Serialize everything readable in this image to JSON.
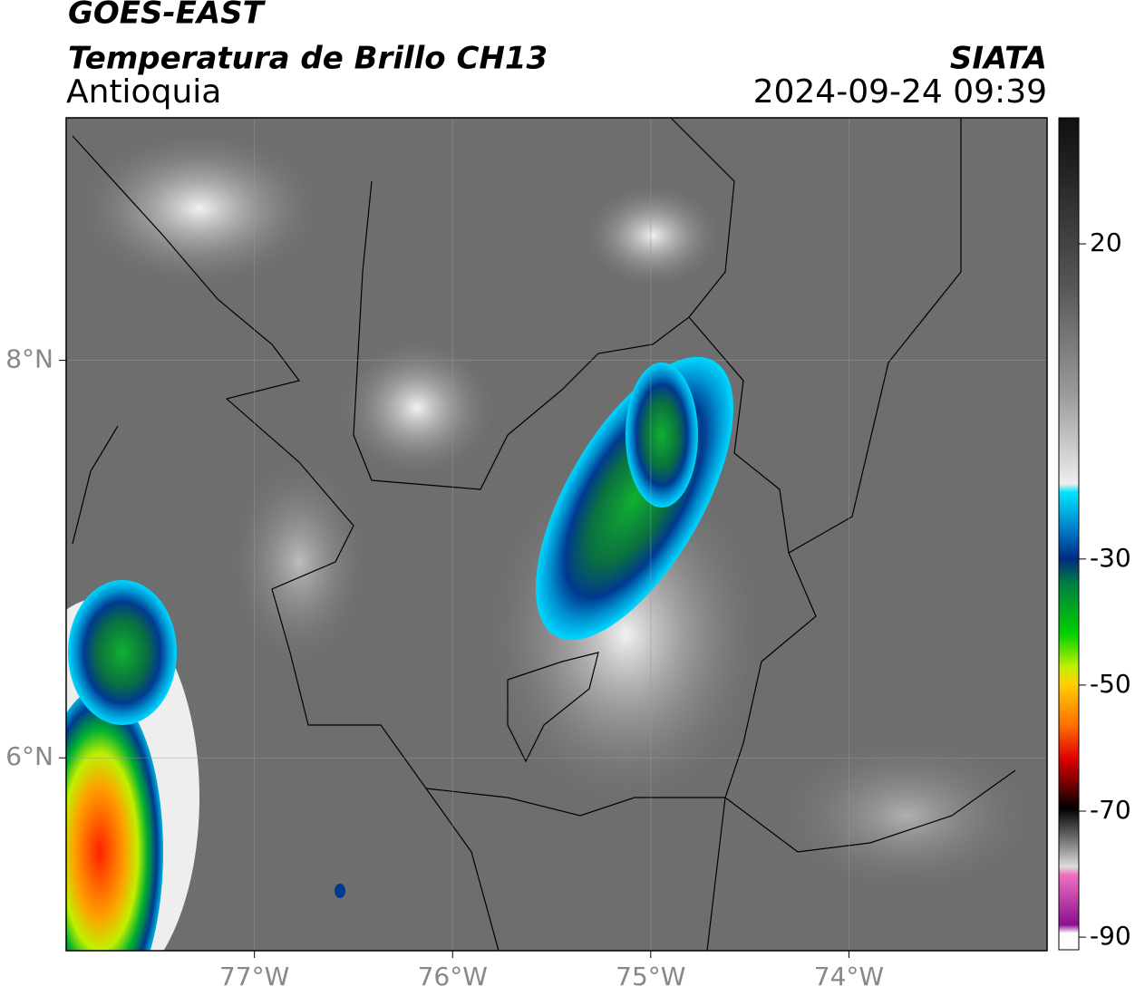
{
  "header": {
    "line1": "GOES-EAST",
    "line2": "Temperatura de Brillo CH13",
    "line3": "Antioquia",
    "source": "SIATA",
    "datetime": "2024-09-24 09:39"
  },
  "map": {
    "xlim": [
      -77.95,
      -73.0
    ],
    "ylim": [
      5.03,
      9.22
    ],
    "xticks": [
      {
        "value": -77,
        "label": "77°W"
      },
      {
        "value": -76,
        "label": "76°W"
      },
      {
        "value": -75,
        "label": "75°W"
      },
      {
        "value": -74,
        "label": "74°W"
      }
    ],
    "yticks": [
      {
        "value": 8,
        "label": "8°N"
      },
      {
        "value": 6,
        "label": "6°N"
      }
    ]
  },
  "colorbar": {
    "lim": [
      -92,
      40
    ],
    "ticks": [
      20,
      -30,
      -50,
      -70,
      -90
    ]
  }
}
